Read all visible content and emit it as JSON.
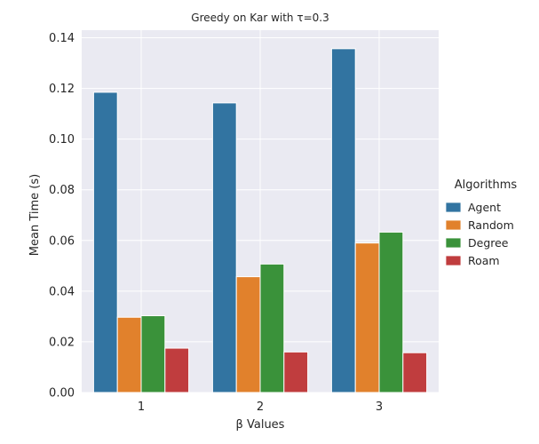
{
  "chart_data": {
    "type": "bar",
    "title": "Greedy on Kar with τ=0.3",
    "xlabel": "β Values",
    "ylabel": "Mean Time (s)",
    "categories": [
      "1",
      "2",
      "3"
    ],
    "ylim": [
      0,
      0.143
    ],
    "yticks": [
      0.0,
      0.02,
      0.04,
      0.06,
      0.08,
      0.1,
      0.12,
      0.14
    ],
    "ytick_labels": [
      "0.00",
      "0.02",
      "0.04",
      "0.06",
      "0.08",
      "0.10",
      "0.12",
      "0.14"
    ],
    "grid": true,
    "legend": {
      "title": "Algorithms",
      "placement": "right"
    },
    "series": [
      {
        "name": "Agent",
        "color": "#3274a1",
        "values": [
          0.1185,
          0.1143,
          0.1357
        ]
      },
      {
        "name": "Random",
        "color": "#e1812c",
        "values": [
          0.0297,
          0.0457,
          0.059
        ]
      },
      {
        "name": "Degree",
        "color": "#3a923a",
        "values": [
          0.0303,
          0.0507,
          0.0633
        ]
      },
      {
        "name": "Roam",
        "color": "#c03d3e",
        "values": [
          0.0175,
          0.016,
          0.0157
        ]
      }
    ],
    "background_color": "#eaeaf2",
    "grid_color": "#ffffff"
  }
}
